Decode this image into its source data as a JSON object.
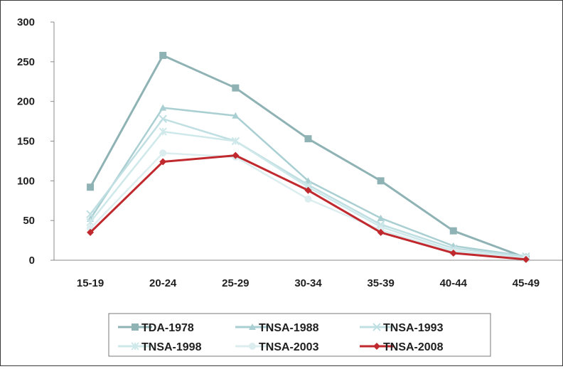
{
  "chart_data": {
    "type": "line",
    "title": "",
    "xlabel": "",
    "ylabel": "",
    "categories": [
      "15-19",
      "20-24",
      "25-29",
      "30-34",
      "35-39",
      "40-44",
      "45-49"
    ],
    "ylim": [
      0,
      300
    ],
    "yticks": [
      0,
      50,
      100,
      150,
      200,
      250,
      300
    ],
    "grid": false,
    "legend_position": "bottom",
    "series": [
      {
        "name": "TDA-1978",
        "values": [
          92,
          258,
          217,
          153,
          100,
          37,
          3
        ],
        "color": "#8fb2b4",
        "marker": "square"
      },
      {
        "name": "TNSA-1988",
        "values": [
          52,
          192,
          182,
          100,
          53,
          18,
          5
        ],
        "color": "#aacfd2",
        "marker": "triangle"
      },
      {
        "name": "TNSA-1993",
        "values": [
          58,
          178,
          150,
          95,
          45,
          15,
          5
        ],
        "color": "#c0dfe2",
        "marker": "cross"
      },
      {
        "name": "TNSA-1998",
        "values": [
          48,
          162,
          150,
          92,
          42,
          12,
          3
        ],
        "color": "#cfe8ea",
        "marker": "star"
      },
      {
        "name": "TNSA-2003",
        "values": [
          40,
          135,
          130,
          77,
          38,
          10,
          2
        ],
        "color": "#dcedef",
        "marker": "circle"
      },
      {
        "name": "TNSA-2008",
        "values": [
          35,
          124,
          132,
          88,
          35,
          9,
          1
        ],
        "color": "#c0292e",
        "marker": "diamond"
      }
    ]
  }
}
